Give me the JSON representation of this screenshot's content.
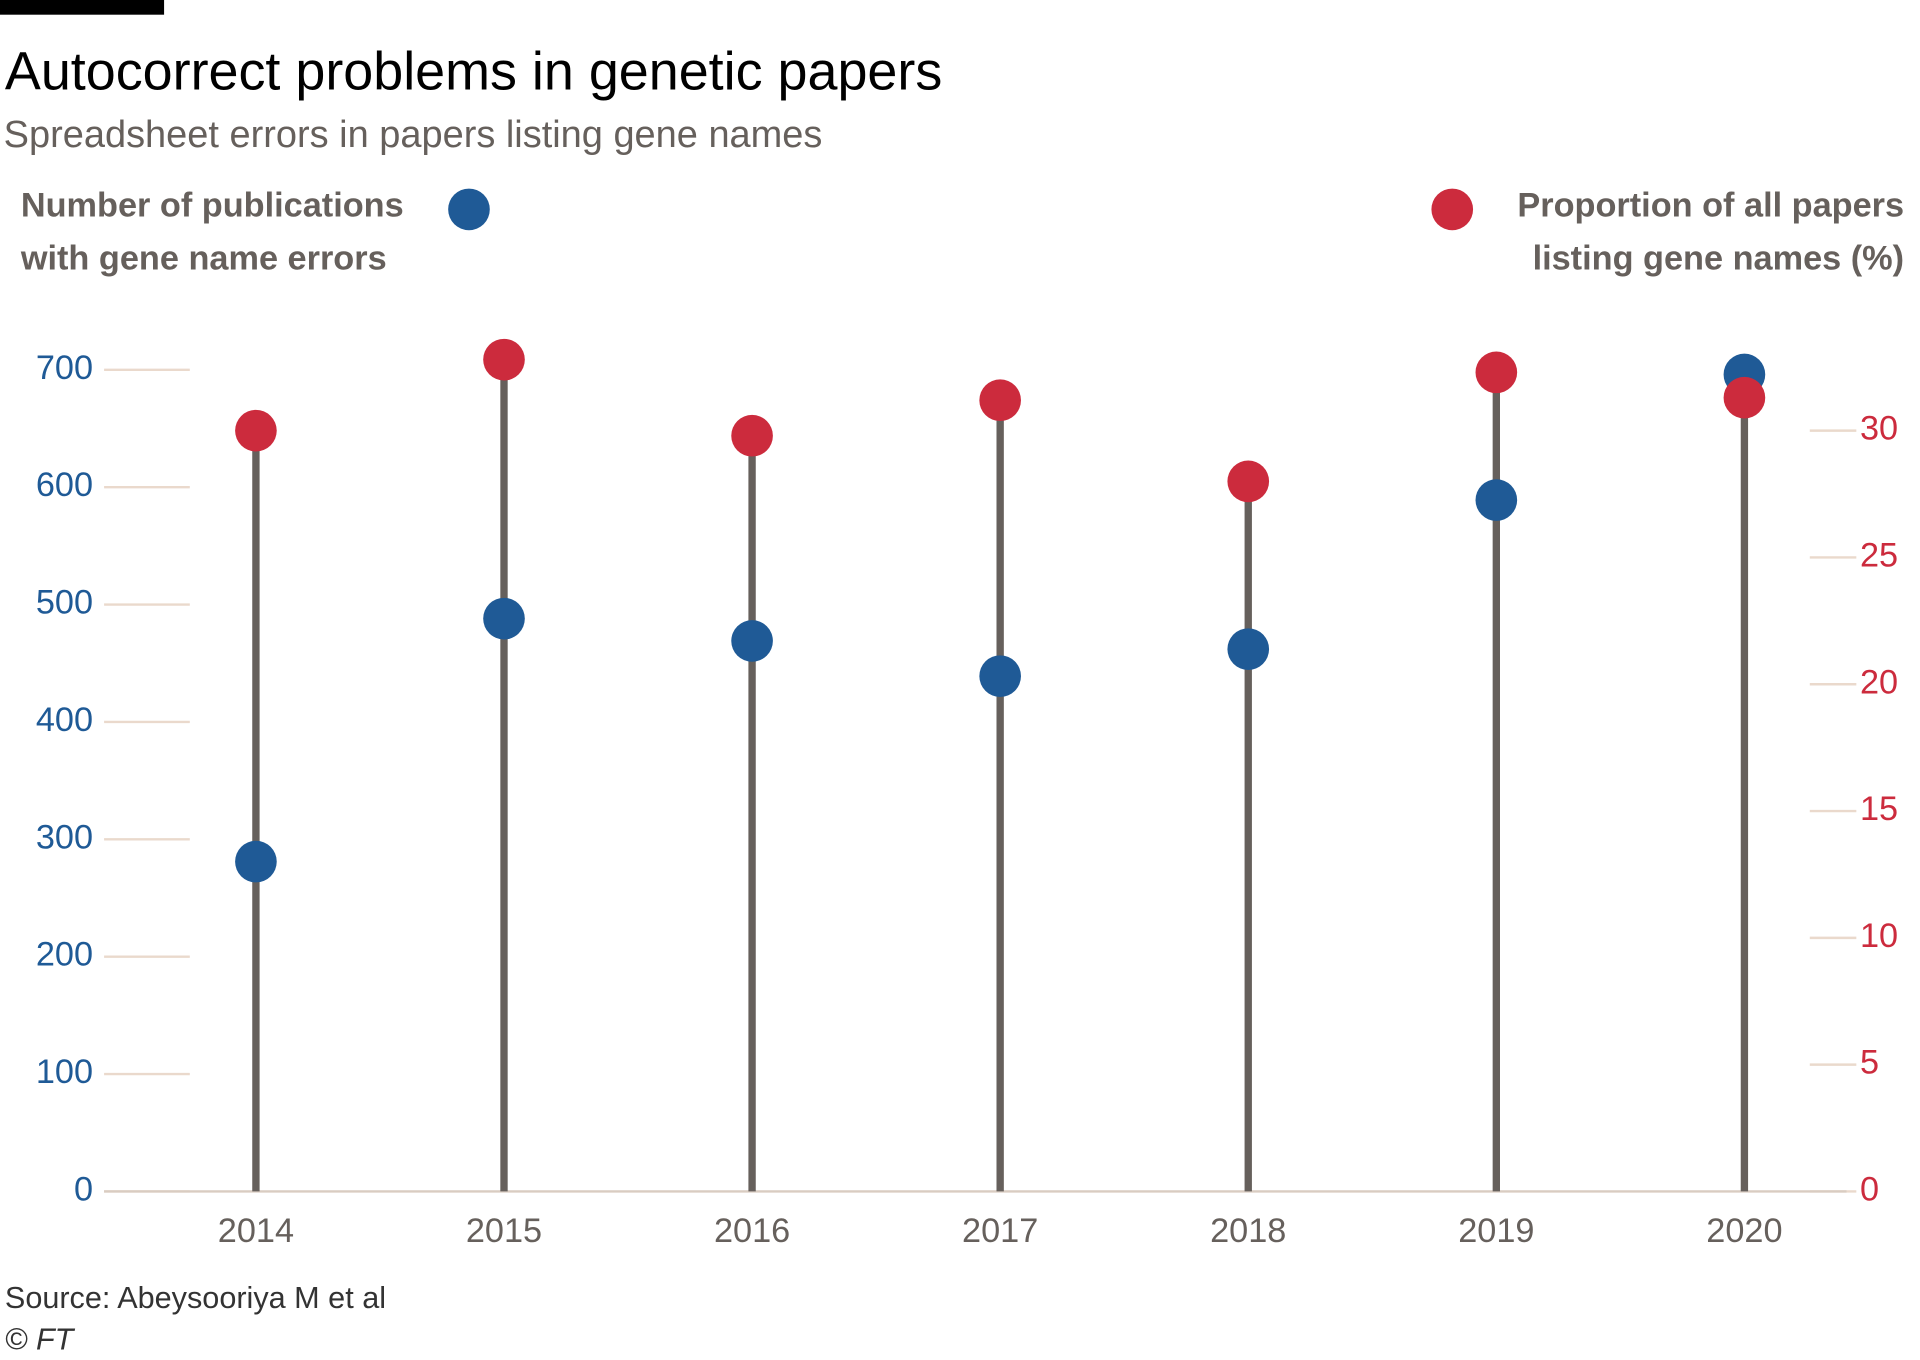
{
  "chart_data": {
    "type": "lollipop",
    "title": "Autocorrect problems in genetic papers",
    "subtitle": "Spreadsheet errors in papers listing gene names",
    "source": "Source: Abeysooriya M et al",
    "credit": "© FT",
    "categories": [
      "2014",
      "2015",
      "2016",
      "2017",
      "2018",
      "2019",
      "2020"
    ],
    "series": [
      {
        "name": "Number of publications with gene name errors",
        "color": "#1f5a96",
        "values": [
          281,
          488,
          469,
          439,
          462,
          589,
          696
        ]
      },
      {
        "name": "Proportion of all papers listing gene names (%)",
        "color": "#cc2b3d",
        "axis": "y2",
        "values": [
          30.0,
          32.8,
          29.8,
          31.2,
          28.0,
          32.3,
          31.3
        ]
      }
    ],
    "ylim": [
      0,
      700
    ],
    "yticks": [
      0,
      100,
      200,
      300,
      400,
      500,
      600,
      700
    ],
    "y2lim": [
      0,
      32.4
    ],
    "y2ticks": [
      0,
      5,
      10,
      15,
      20,
      25,
      30
    ]
  }
}
